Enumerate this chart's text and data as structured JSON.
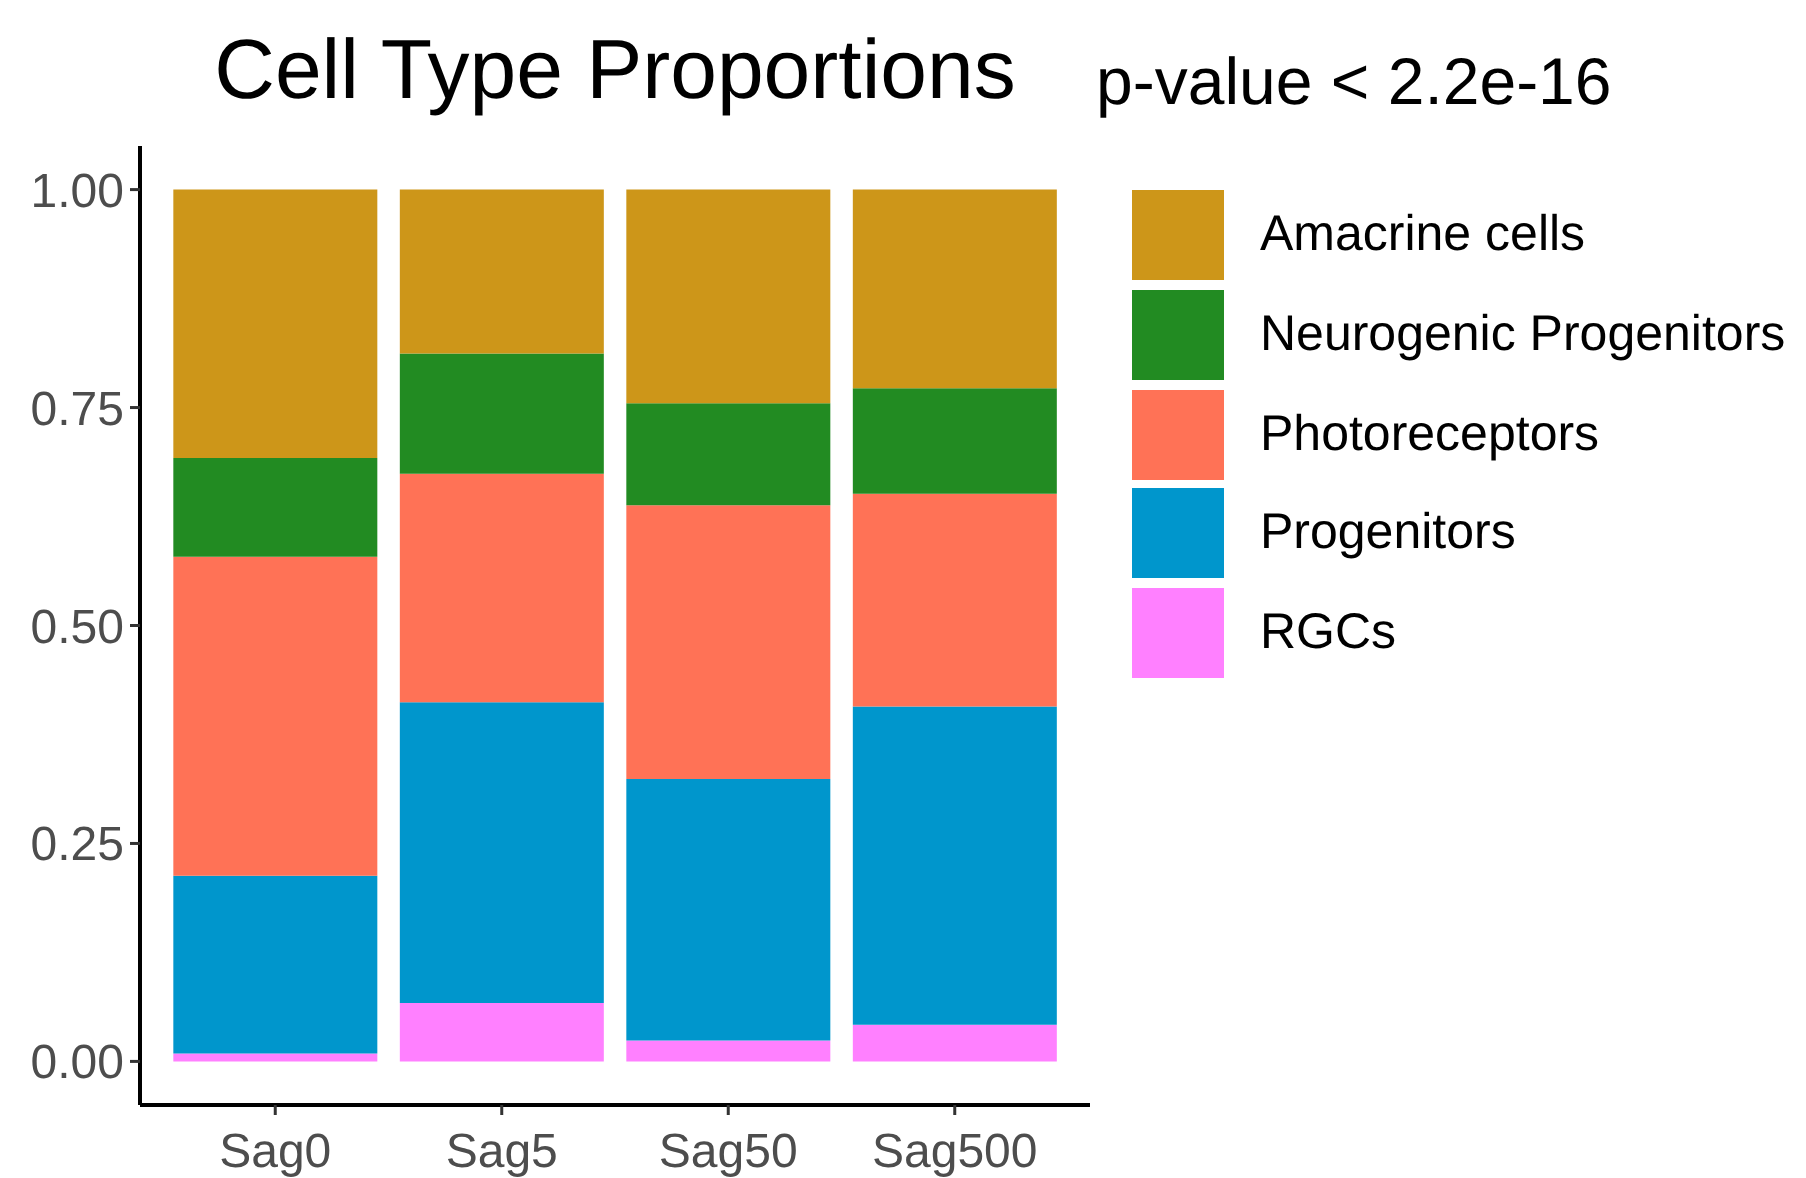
{
  "chart_data": {
    "type": "bar",
    "title": "Cell Type Proportions",
    "subtitle": "p-value < 2.2e-16",
    "categories": [
      "Sag0",
      "Sag5",
      "Sag50",
      "Sag500"
    ],
    "stacked": true,
    "series": [
      {
        "name": "RGCs",
        "color": "#ff80ff",
        "values": [
          0.009,
          0.067,
          0.024,
          0.042
        ]
      },
      {
        "name": "Progenitors",
        "color": "#0096cc",
        "values": [
          0.204,
          0.345,
          0.3,
          0.365
        ]
      },
      {
        "name": "Photoreceptors",
        "color": "#ff7256",
        "values": [
          0.366,
          0.262,
          0.314,
          0.244
        ]
      },
      {
        "name": "Neurogenic Progenitors",
        "color": "#228b22",
        "values": [
          0.113,
          0.138,
          0.117,
          0.121
        ]
      },
      {
        "name": "Amacrine cells",
        "color": "#cd9619",
        "values": [
          0.308,
          0.188,
          0.245,
          0.228
        ]
      }
    ],
    "ylim": [
      -0.05,
      1.05
    ],
    "yticks": [
      {
        "value": 0,
        "label": "0.00"
      },
      {
        "value": 0.25,
        "label": "0.25"
      },
      {
        "value": 0.5,
        "label": "0.50"
      },
      {
        "value": 0.75,
        "label": "0.75"
      },
      {
        "value": 1,
        "label": "1.00"
      }
    ],
    "legend": "right"
  }
}
